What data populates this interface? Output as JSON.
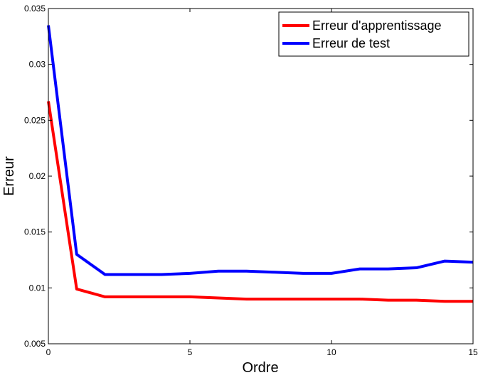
{
  "chart_data": {
    "type": "line",
    "title": "",
    "xlabel": "Ordre",
    "ylabel": "Erreur",
    "xlim": [
      0,
      15
    ],
    "ylim": [
      0.005,
      0.035
    ],
    "xticks": [
      "0",
      "5",
      "10",
      "15"
    ],
    "yticks": [
      "0.005",
      "0.01",
      "0.015",
      "0.02",
      "0.025",
      "0.03",
      "0.035"
    ],
    "grid": false,
    "legend_position": "top-right",
    "x": [
      0,
      1,
      2,
      3,
      4,
      5,
      6,
      7,
      8,
      9,
      10,
      11,
      12,
      13,
      14,
      15
    ],
    "series": [
      {
        "name": "Erreur d'apprentissage",
        "color": "#ff0000",
        "values": [
          0.0267,
          0.0099,
          0.0092,
          0.0092,
          0.0092,
          0.0092,
          0.0091,
          0.009,
          0.009,
          0.009,
          0.009,
          0.009,
          0.0089,
          0.0089,
          0.0088,
          0.0088
        ]
      },
      {
        "name": "Erreur de test",
        "color": "#0000ff",
        "values": [
          0.0335,
          0.013,
          0.0112,
          0.0112,
          0.0112,
          0.0113,
          0.0115,
          0.0115,
          0.0114,
          0.0113,
          0.0113,
          0.0117,
          0.0117,
          0.0118,
          0.0124,
          0.0123
        ]
      }
    ]
  }
}
